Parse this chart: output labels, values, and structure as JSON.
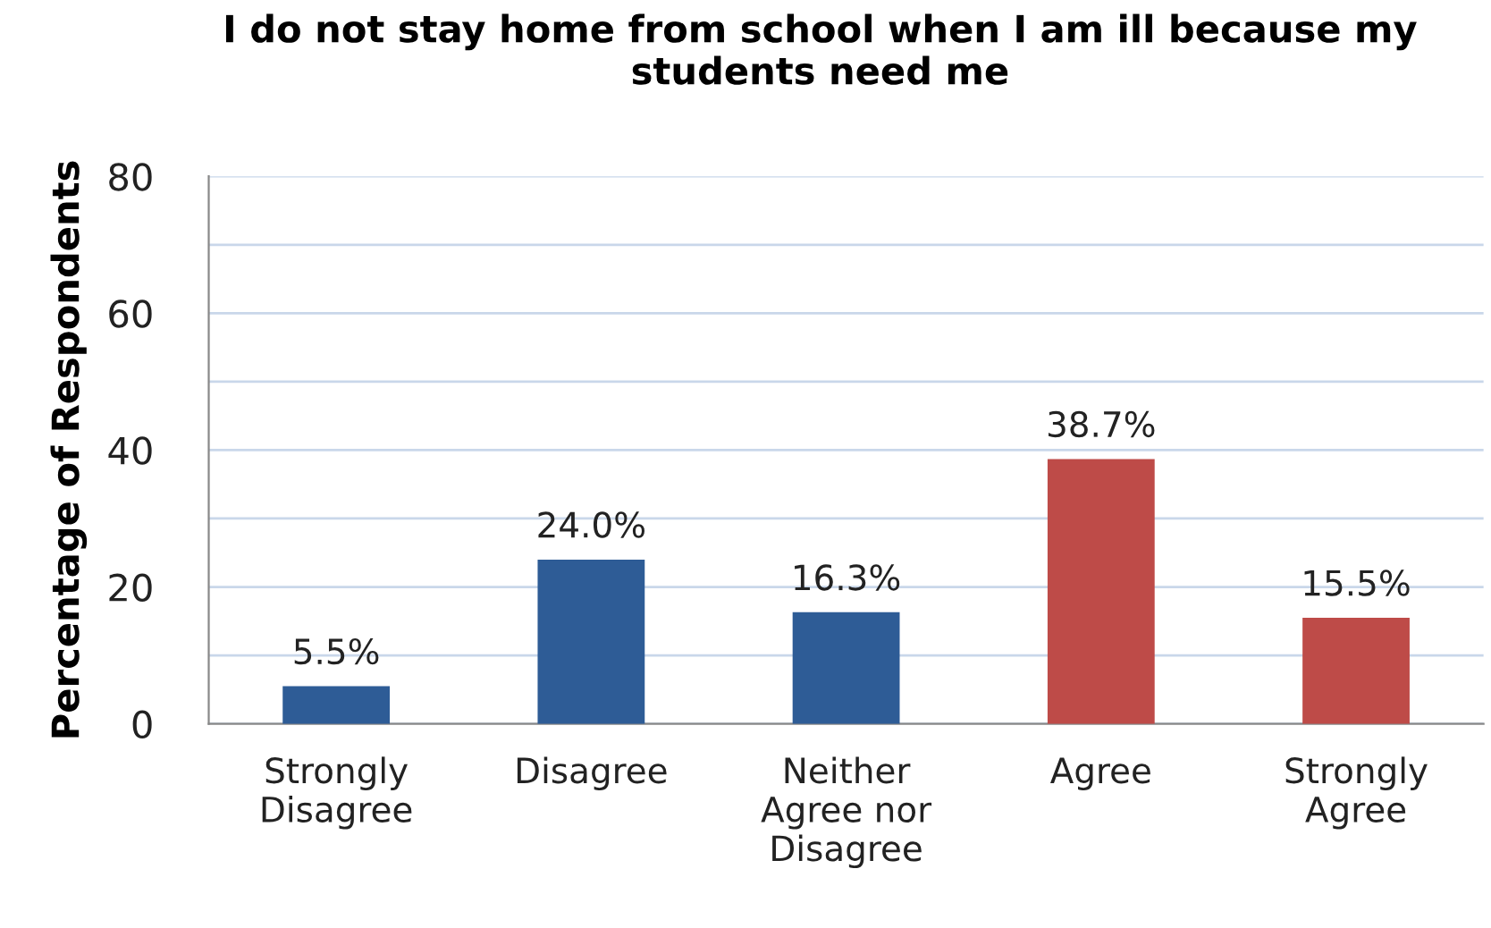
{
  "chart_data": {
    "type": "bar",
    "title": "I do not stay home from school when I am ill because my students need me",
    "ylabel": "Percentage of Respondents",
    "categories": [
      "Strongly Disagree",
      "Disagree",
      "Neither Agree nor Disagree",
      "Agree",
      "Strongly Agree"
    ],
    "values": [
      5.5,
      24.0,
      16.3,
      38.7,
      15.5
    ],
    "colors": [
      "#2e5c96",
      "#2e5c96",
      "#2e5c96",
      "#be4b48",
      "#be4b48"
    ],
    "value_labels": [
      "5.5%",
      "24.0%",
      "16.3%",
      "38.7%",
      "15.5%"
    ],
    "ylim": [
      0,
      80
    ],
    "yticks": [
      0,
      {
        "value": 10,
        "label": null
      },
      20,
      {
        "value": 30,
        "label": null
      },
      40,
      {
        "value": 50,
        "label": null
      },
      60,
      {
        "value": 70,
        "label": null
      },
      80
    ],
    "grid": "y"
  }
}
